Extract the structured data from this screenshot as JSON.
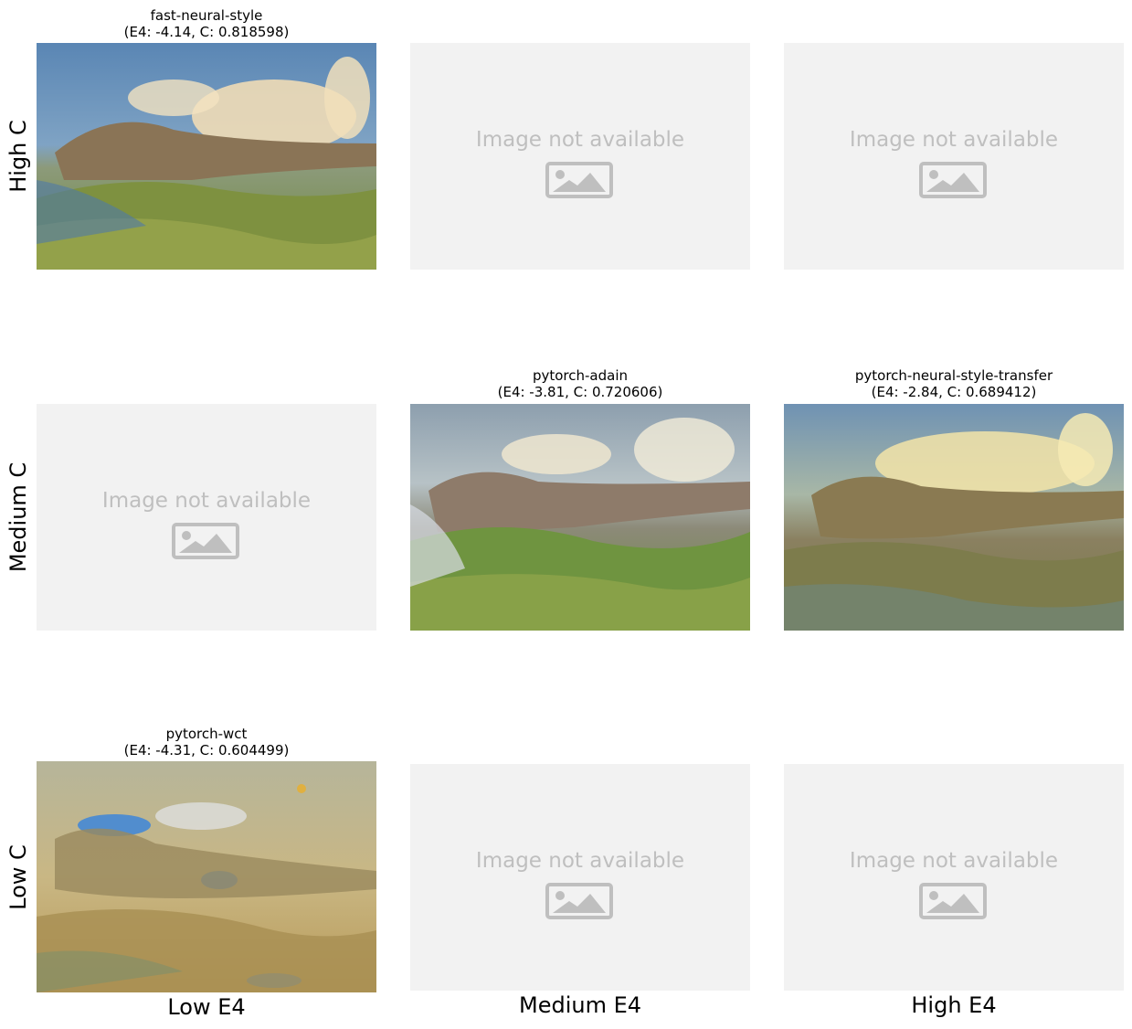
{
  "row_labels": [
    "High C",
    "Medium C",
    "Low C"
  ],
  "col_labels": [
    "Low E4",
    "Medium E4",
    "High E4"
  ],
  "placeholder_text": "Image not available",
  "panels": {
    "r0c0": {
      "name": "fast-neural-style",
      "metrics": "(E4: -4.14, C: 0.818598)"
    },
    "r1c1": {
      "name": "pytorch-adain",
      "metrics": "(E4: -3.81, C: 0.720606)"
    },
    "r1c2": {
      "name": "pytorch-neural-style-transfer",
      "metrics": "(E4: -2.84, C: 0.689412)"
    },
    "r2c0": {
      "name": "pytorch-wct",
      "metrics": "(E4: -4.31, C: 0.604499)"
    }
  },
  "colors": {
    "placeholder_bg": "#f2f2f2",
    "placeholder_fg": "#bfbfbf"
  }
}
